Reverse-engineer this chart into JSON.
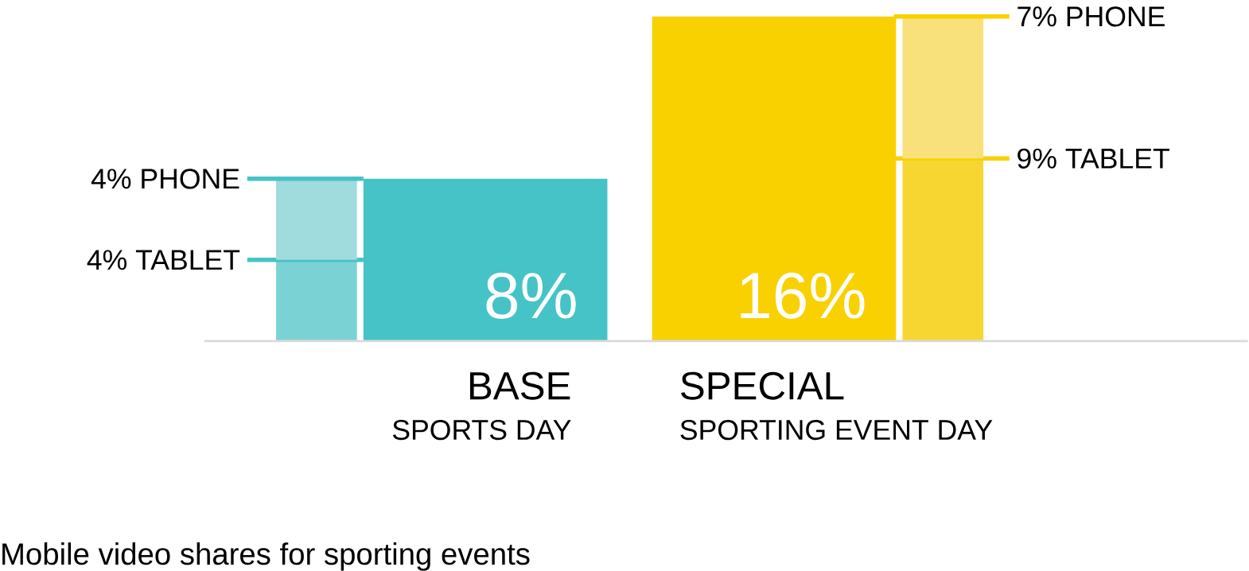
{
  "chart_data": {
    "type": "bar",
    "stacked": true,
    "categories": [
      null,
      "BASE",
      "SPECIAL",
      null
    ],
    "series": [
      {
        "values": [
          null,
          8,
          16,
          null
        ],
        "colors": [
          null,
          "#46c3c6",
          "#f9d000",
          null
        ],
        "value_labels": [
          null,
          "8%",
          "16%",
          null
        ]
      },
      {
        "values": [
          4,
          null,
          null,
          9
        ],
        "colors": [
          "#7bd2d4",
          null,
          null,
          "#f8d631"
        ],
        "value_labels": [
          "4% TABLET",
          null,
          null,
          "9% TABLET"
        ]
      },
      {
        "values": [
          4,
          null,
          null,
          7
        ],
        "colors": [
          "#a0dbde",
          null,
          null,
          "#f8e07b"
        ],
        "value_labels": [
          "4% PHONE",
          null,
          null,
          "7% PHONE"
        ]
      }
    ],
    "ylim": [
      0,
      16
    ],
    "tick_labels": "x",
    "annotations": [
      "SPORTS DAY",
      "SPORTING EVENT DAY",
      "Mobile video shares for sporting events"
    ]
  }
}
